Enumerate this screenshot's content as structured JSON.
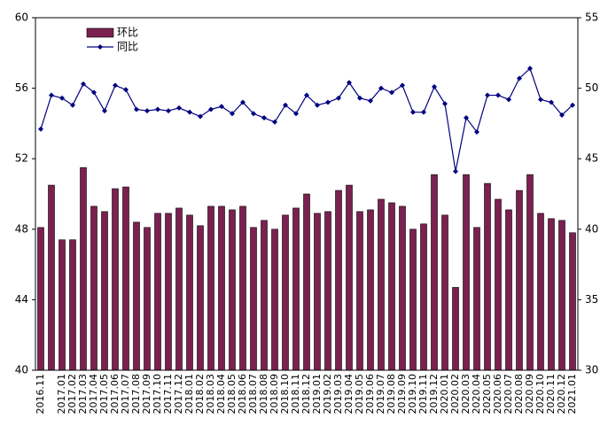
{
  "chart_data": {
    "type": "bar+line",
    "categories": [
      "2016.11",
      null,
      "2017.01",
      "2017.02",
      "2017.03",
      "2017.04",
      "2017.05",
      "2017.06",
      "2017.07",
      "2017.08",
      "2017.09",
      "2017.10",
      "2017.11",
      "2017.12",
      "2018.01",
      "2018.02",
      "2018.03",
      "2018.04",
      "2018.05",
      "2018.06",
      "2018.07",
      "2018.08",
      "2018.09",
      "2018.10",
      "2018.11",
      "2018.12",
      "2019.01",
      "2019.02",
      "2019.03",
      "2019.04",
      "2019.05",
      "2019.06",
      "2019.07",
      "2019.08",
      "2019.09",
      "2019.10",
      "2019.11",
      "2019.12",
      "2020.01",
      "2020.02",
      "2020.03",
      "2020.04",
      "2020.05",
      "2020.06",
      "2020.07",
      "2020.08",
      "2020.09",
      "2020.10",
      "2020.11",
      "2020.12",
      "2021.01"
    ],
    "series": [
      {
        "name": "环比",
        "type": "bar",
        "color": "#7b2150",
        "axis": "y",
        "values": [
          48.1,
          50.5,
          47.4,
          47.4,
          51.5,
          49.3,
          49.0,
          50.3,
          50.4,
          48.4,
          48.1,
          48.9,
          48.9,
          49.2,
          48.8,
          48.2,
          49.3,
          49.3,
          49.1,
          49.3,
          48.1,
          48.5,
          48.0,
          48.8,
          49.2,
          50.0,
          48.9,
          49.0,
          50.2,
          50.5,
          49.0,
          49.1,
          49.7,
          49.5,
          49.3,
          48.0,
          48.3,
          51.1,
          48.8,
          44.7,
          51.1,
          48.1,
          50.6,
          49.7,
          49.1,
          50.2,
          51.1,
          48.9,
          48.6,
          48.5,
          47.8
        ]
      },
      {
        "name": "同比",
        "type": "line",
        "color": "#000080",
        "axis": "y2",
        "values": [
          47.1,
          49.5,
          49.3,
          48.8,
          50.3,
          49.7,
          48.4,
          50.2,
          49.9,
          48.5,
          48.4,
          48.5,
          48.4,
          48.6,
          48.3,
          48.0,
          48.5,
          48.7,
          48.2,
          49.0,
          48.2,
          47.9,
          47.6,
          48.8,
          48.2,
          49.5,
          48.8,
          49.0,
          49.3,
          50.4,
          49.3,
          49.1,
          50.0,
          49.7,
          50.2,
          48.3,
          48.3,
          50.1,
          48.9,
          44.1,
          47.9,
          46.9,
          49.5,
          49.5,
          49.2,
          50.7,
          51.4,
          49.2,
          49.0,
          48.1,
          48.8
        ]
      }
    ],
    "ylim": [
      40,
      60
    ],
    "yticks": [
      40,
      44,
      48,
      52,
      56,
      60
    ],
    "y2lim": [
      30,
      55
    ],
    "y2ticks": [
      30,
      35,
      40,
      45,
      50,
      55
    ],
    "legend": "upper left",
    "grid": false
  }
}
